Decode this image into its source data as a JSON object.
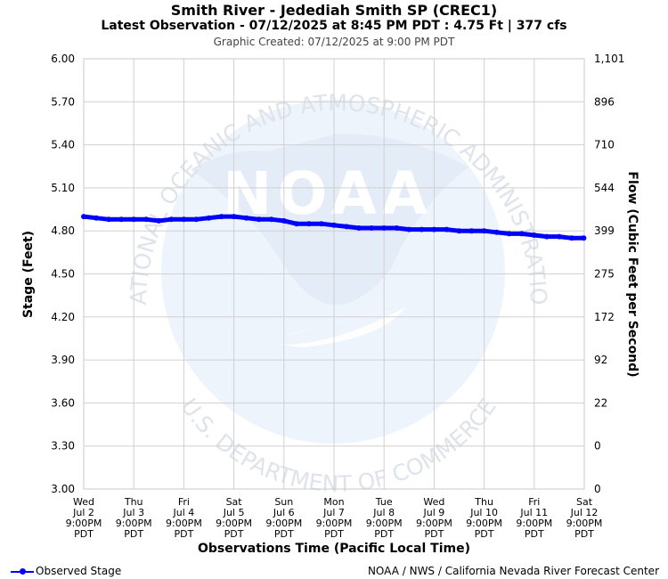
{
  "header": {
    "title": "Smith River - Jedediah Smith SP (CREC1)",
    "subtitle": "Latest Observation - 07/12/2025 at 8:45 PM PDT : 4.75 Ft | 377 cfs",
    "created": "Graphic Created: 07/12/2025 at 9:00 PM PDT"
  },
  "watermark": {
    "logo_text": "NOAA",
    "ring_top": "NATIONAL OCEANIC AND ATMOSPHERIC ADMINISTRATION",
    "ring_bottom": "U.S. DEPARTMENT OF COMMERCE"
  },
  "legend": {
    "label": "Observed Stage",
    "color": "#0000ff"
  },
  "credit": "NOAA / NWS / California Nevada River Forecast Center",
  "chart_data": {
    "type": "line",
    "ylabel": "Stage (Feet)",
    "y2label": "Flow (Cubic Feet per Second)",
    "xlabel": "Observations Time (Pacific Local Time)",
    "ylim": [
      3.0,
      6.0
    ],
    "grid": true,
    "y_ticks": [
      "3.00",
      "3.30",
      "3.60",
      "3.90",
      "4.20",
      "4.50",
      "4.80",
      "5.10",
      "5.40",
      "5.70",
      "6.00"
    ],
    "y2_ticks": [
      "0",
      "0",
      "22",
      "92",
      "172",
      "275",
      "399",
      "544",
      "710",
      "896",
      "1,101"
    ],
    "x_ticks": [
      {
        "day": "Wed",
        "date": "Jul 2",
        "time": "9:00PM",
        "tz": "PDT"
      },
      {
        "day": "Thu",
        "date": "Jul 3",
        "time": "9:00PM",
        "tz": "PDT"
      },
      {
        "day": "Fri",
        "date": "Jul 4",
        "time": "9:00PM",
        "tz": "PDT"
      },
      {
        "day": "Sat",
        "date": "Jul 5",
        "time": "9:00PM",
        "tz": "PDT"
      },
      {
        "day": "Sun",
        "date": "Jul 6",
        "time": "9:00PM",
        "tz": "PDT"
      },
      {
        "day": "Mon",
        "date": "Jul 7",
        "time": "9:00PM",
        "tz": "PDT"
      },
      {
        "day": "Tue",
        "date": "Jul 8",
        "time": "9:00PM",
        "tz": "PDT"
      },
      {
        "day": "Wed",
        "date": "Jul 9",
        "time": "9:00PM",
        "tz": "PDT"
      },
      {
        "day": "Thu",
        "date": "Jul 10",
        "time": "9:00PM",
        "tz": "PDT"
      },
      {
        "day": "Fri",
        "date": "Jul 11",
        "time": "9:00PM",
        "tz": "PDT"
      },
      {
        "day": "Sat",
        "date": "Jul 12",
        "time": "9:00PM",
        "tz": "PDT"
      }
    ],
    "x_range": [
      "2025-07-02 21:00",
      "2025-07-12 21:00"
    ],
    "series": [
      {
        "name": "Observed Stage",
        "color": "#0000ff",
        "points": [
          [
            "2025-07-02 21:00",
            4.9
          ],
          [
            "2025-07-03 03:00",
            4.89
          ],
          [
            "2025-07-03 09:00",
            4.88
          ],
          [
            "2025-07-03 15:00",
            4.88
          ],
          [
            "2025-07-03 21:00",
            4.88
          ],
          [
            "2025-07-04 03:00",
            4.88
          ],
          [
            "2025-07-04 09:00",
            4.87
          ],
          [
            "2025-07-04 15:00",
            4.88
          ],
          [
            "2025-07-04 21:00",
            4.88
          ],
          [
            "2025-07-05 03:00",
            4.88
          ],
          [
            "2025-07-05 09:00",
            4.89
          ],
          [
            "2025-07-05 15:00",
            4.9
          ],
          [
            "2025-07-05 21:00",
            4.9
          ],
          [
            "2025-07-06 03:00",
            4.89
          ],
          [
            "2025-07-06 09:00",
            4.88
          ],
          [
            "2025-07-06 15:00",
            4.88
          ],
          [
            "2025-07-06 21:00",
            4.87
          ],
          [
            "2025-07-07 03:00",
            4.85
          ],
          [
            "2025-07-07 09:00",
            4.85
          ],
          [
            "2025-07-07 15:00",
            4.85
          ],
          [
            "2025-07-07 21:00",
            4.84
          ],
          [
            "2025-07-08 03:00",
            4.83
          ],
          [
            "2025-07-08 09:00",
            4.82
          ],
          [
            "2025-07-08 15:00",
            4.82
          ],
          [
            "2025-07-08 21:00",
            4.82
          ],
          [
            "2025-07-09 03:00",
            4.82
          ],
          [
            "2025-07-09 09:00",
            4.81
          ],
          [
            "2025-07-09 15:00",
            4.81
          ],
          [
            "2025-07-09 21:00",
            4.81
          ],
          [
            "2025-07-10 03:00",
            4.81
          ],
          [
            "2025-07-10 09:00",
            4.8
          ],
          [
            "2025-07-10 15:00",
            4.8
          ],
          [
            "2025-07-10 21:00",
            4.8
          ],
          [
            "2025-07-11 03:00",
            4.79
          ],
          [
            "2025-07-11 09:00",
            4.78
          ],
          [
            "2025-07-11 15:00",
            4.78
          ],
          [
            "2025-07-11 21:00",
            4.77
          ],
          [
            "2025-07-12 03:00",
            4.76
          ],
          [
            "2025-07-12 09:00",
            4.76
          ],
          [
            "2025-07-12 15:00",
            4.75
          ],
          [
            "2025-07-12 20:45",
            4.75
          ]
        ]
      }
    ]
  }
}
